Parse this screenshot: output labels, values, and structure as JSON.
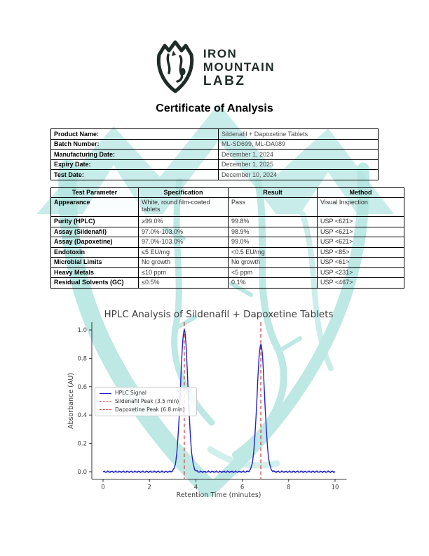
{
  "document": {
    "logo": {
      "icon": "mountain-shield-icon",
      "name_line1": "IRON",
      "name_line2": "MOUNTAIN",
      "name_line3": "LABZ"
    },
    "title": "Certificate of Analysis",
    "product_info": {
      "rows": [
        {
          "label": "Product Name:",
          "value": "Sildenafil + Dapoxetine Tablets"
        },
        {
          "label": "Batch Number:",
          "value": "ML-SD699, ML-DA089"
        },
        {
          "label": "Manufacturing Date:",
          "value": "December 1, 2024"
        },
        {
          "label": "Expiry Date:",
          "value": "December 1, 2025"
        },
        {
          "label": "Test Date:",
          "value": "December 10, 2024"
        }
      ]
    },
    "results_table": {
      "headers": [
        "Test Parameter",
        "Specification",
        "Result",
        "Method"
      ],
      "rows": [
        [
          "Appearance",
          "White, round film-coated tablets",
          "Pass",
          "Visual Inspection"
        ],
        [
          "Purity (HPLC)",
          "≥99.0%",
          "99.8%",
          "USP <621>"
        ],
        [
          "Assay (Sildenafil)",
          "97.0%-103.0%",
          "98.9%",
          "USP <621>"
        ],
        [
          "Assay (Dapoxetine)",
          "97.0%-103.0%",
          "99.0%",
          "USP <621>"
        ],
        [
          "Endotoxin",
          "≤5 EU/mg",
          "<0.5 EU/mg",
          "USP <85>"
        ],
        [
          "Microbial Limits",
          "No growth",
          "No growth",
          "USP <61>"
        ],
        [
          "Heavy Metals",
          "≤10 ppm",
          "<5 ppm",
          "USP <231>"
        ],
        [
          "Residual Solvents (GC)",
          "≤0.5%",
          "0.1%",
          "USP <467>"
        ]
      ]
    }
  },
  "chart_data": {
    "type": "line",
    "title": "HPLC Analysis of Sildenafil + Dapoxetine Tablets",
    "xlabel": "Retention Time (minutes)",
    "ylabel": "Absorbance (AU)",
    "xlim": [
      -0.5,
      10.5
    ],
    "ylim": [
      -0.05,
      1.05
    ],
    "xticks": [
      0,
      2,
      4,
      6,
      8,
      10
    ],
    "yticks": [
      0.0,
      0.2,
      0.4,
      0.6,
      0.8,
      1.0
    ],
    "grid": false,
    "series": [
      {
        "name": "HPLC Signal",
        "color": "#2323c8",
        "style": "solid",
        "baseline_au": 0.0,
        "peaks": [
          {
            "analyte": "Sildenafil",
            "retention_time_min": 3.5,
            "height_au": 1.0,
            "sigma_min": 0.16
          },
          {
            "analyte": "Dapoxetine",
            "retention_time_min": 6.8,
            "height_au": 0.9,
            "sigma_min": 0.16
          }
        ]
      }
    ],
    "vlines": [
      {
        "x": 3.5,
        "label": "Sildenafil Peak (3.5 min)",
        "color": "#d43f3f",
        "style": "dashed"
      },
      {
        "x": 6.8,
        "label": "Dapoxetine Peak (6.8 min)",
        "color": "#d43f3f",
        "style": "dashed"
      }
    ],
    "legend": {
      "position": "center-left"
    }
  },
  "colors": {
    "brand_dark": "#1f2b26",
    "watermark_teal": "#b2e5e0",
    "chart_line_blue": "#2323c8",
    "peak_marker_red": "#d43f3f",
    "table_border": "#000000"
  }
}
